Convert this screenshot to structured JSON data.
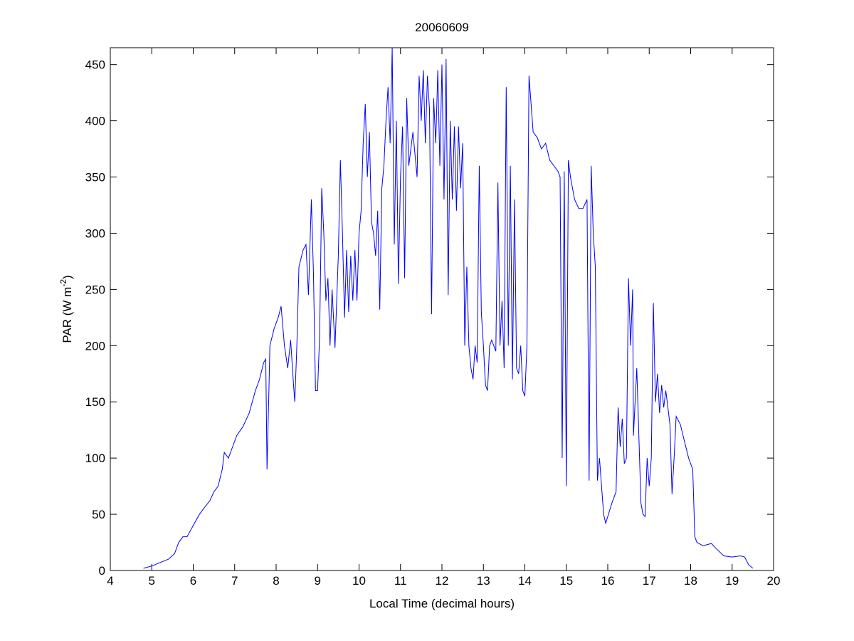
{
  "chart_data": {
    "type": "line",
    "title": "20060609",
    "xlabel": "Local Time (decimal hours)",
    "ylabel_parts": [
      "PAR (W m",
      "-2",
      ")"
    ],
    "xlim": [
      4,
      20
    ],
    "ylim": [
      0,
      465
    ],
    "xticks": [
      4,
      5,
      6,
      7,
      8,
      9,
      10,
      11,
      12,
      13,
      14,
      15,
      16,
      17,
      18,
      19,
      20
    ],
    "yticks": [
      0,
      50,
      100,
      150,
      200,
      250,
      300,
      350,
      400,
      450
    ],
    "grid": false,
    "series": [
      {
        "color": "#0000ff",
        "x": [
          4.8,
          5.0,
          5.2,
          5.4,
          5.55,
          5.65,
          5.75,
          5.85,
          6.0,
          6.15,
          6.25,
          6.4,
          6.5,
          6.6,
          6.7,
          6.75,
          6.85,
          6.95,
          7.05,
          7.2,
          7.35,
          7.5,
          7.6,
          7.7,
          7.75,
          7.78,
          7.82,
          7.85,
          7.95,
          8.05,
          8.12,
          8.2,
          8.28,
          8.35,
          8.42,
          8.45,
          8.5,
          8.55,
          8.65,
          8.72,
          8.78,
          8.85,
          8.9,
          8.95,
          9.0,
          9.05,
          9.1,
          9.15,
          9.2,
          9.25,
          9.3,
          9.35,
          9.42,
          9.5,
          9.55,
          9.6,
          9.65,
          9.7,
          9.75,
          9.8,
          9.85,
          9.9,
          9.95,
          10.0,
          10.05,
          10.1,
          10.15,
          10.2,
          10.25,
          10.3,
          10.35,
          10.4,
          10.45,
          10.5,
          10.55,
          10.6,
          10.65,
          10.7,
          10.75,
          10.8,
          10.85,
          10.9,
          10.95,
          11.0,
          11.05,
          11.1,
          11.15,
          11.2,
          11.3,
          11.4,
          11.45,
          11.5,
          11.55,
          11.6,
          11.65,
          11.7,
          11.75,
          11.8,
          11.85,
          11.9,
          11.95,
          12.0,
          12.05,
          12.1,
          12.15,
          12.2,
          12.25,
          12.3,
          12.35,
          12.4,
          12.45,
          12.5,
          12.55,
          12.6,
          12.65,
          12.7,
          12.75,
          12.8,
          12.85,
          12.9,
          12.95,
          13.0,
          13.05,
          13.1,
          13.15,
          13.2,
          13.3,
          13.35,
          13.4,
          13.45,
          13.5,
          13.55,
          13.6,
          13.65,
          13.7,
          13.75,
          13.8,
          13.85,
          13.9,
          13.95,
          14.0,
          14.05,
          14.1,
          14.2,
          14.3,
          14.4,
          14.5,
          14.6,
          14.7,
          14.8,
          14.85,
          14.9,
          14.95,
          15.0,
          15.05,
          15.1,
          15.2,
          15.3,
          15.4,
          15.5,
          15.55,
          15.6,
          15.65,
          15.7,
          15.75,
          15.8,
          15.9,
          15.95,
          16.1,
          16.2,
          16.25,
          16.3,
          16.35,
          16.4,
          16.45,
          16.5,
          16.55,
          16.6,
          16.62,
          16.7,
          16.8,
          16.85,
          16.9,
          16.95,
          17.0,
          17.05,
          17.1,
          17.15,
          17.2,
          17.25,
          17.3,
          17.35,
          17.4,
          17.45,
          17.5,
          17.55,
          17.6,
          17.65,
          17.75,
          17.85,
          17.95,
          18.05,
          18.1,
          18.15,
          18.3,
          18.5,
          18.6,
          18.8,
          19.0,
          19.2,
          19.3,
          19.4,
          19.5
        ],
        "values": [
          2,
          4,
          7,
          10,
          15,
          25,
          30,
          30,
          40,
          50,
          55,
          62,
          70,
          75,
          90,
          105,
          100,
          110,
          120,
          128,
          140,
          160,
          170,
          185,
          188,
          90,
          150,
          200,
          215,
          225,
          235,
          200,
          180,
          205,
          165,
          150,
          200,
          270,
          285,
          290,
          245,
          330,
          265,
          160,
          160,
          210,
          340,
          300,
          240,
          260,
          200,
          250,
          198,
          280,
          365,
          300,
          225,
          285,
          230,
          280,
          240,
          285,
          240,
          300,
          320,
          380,
          415,
          350,
          390,
          310,
          300,
          280,
          320,
          232,
          340,
          360,
          400,
          430,
          380,
          465,
          290,
          400,
          255,
          350,
          395,
          260,
          420,
          360,
          390,
          350,
          440,
          400,
          445,
          380,
          440,
          410,
          228,
          420,
          380,
          445,
          360,
          450,
          330,
          455,
          245,
          400,
          330,
          395,
          320,
          395,
          340,
          380,
          200,
          270,
          200,
          180,
          170,
          200,
          185,
          360,
          230,
          200,
          165,
          160,
          200,
          205,
          195,
          345,
          200,
          240,
          180,
          430,
          200,
          360,
          170,
          330,
          180,
          175,
          200,
          160,
          155,
          200,
          440,
          390,
          385,
          375,
          380,
          365,
          360,
          355,
          350,
          100,
          355,
          75,
          365,
          350,
          330,
          322,
          322,
          330,
          80,
          360,
          300,
          270,
          80,
          100,
          50,
          42,
          60,
          70,
          145,
          110,
          135,
          95,
          100,
          260,
          200,
          250,
          120,
          180,
          60,
          50,
          48,
          100,
          75,
          100,
          238,
          150,
          175,
          140,
          165,
          145,
          160,
          145,
          130,
          68,
          100,
          137,
          130,
          115,
          100,
          90,
          30,
          25,
          22,
          24,
          20,
          13,
          12,
          13,
          12,
          5,
          2
        ]
      }
    ]
  }
}
